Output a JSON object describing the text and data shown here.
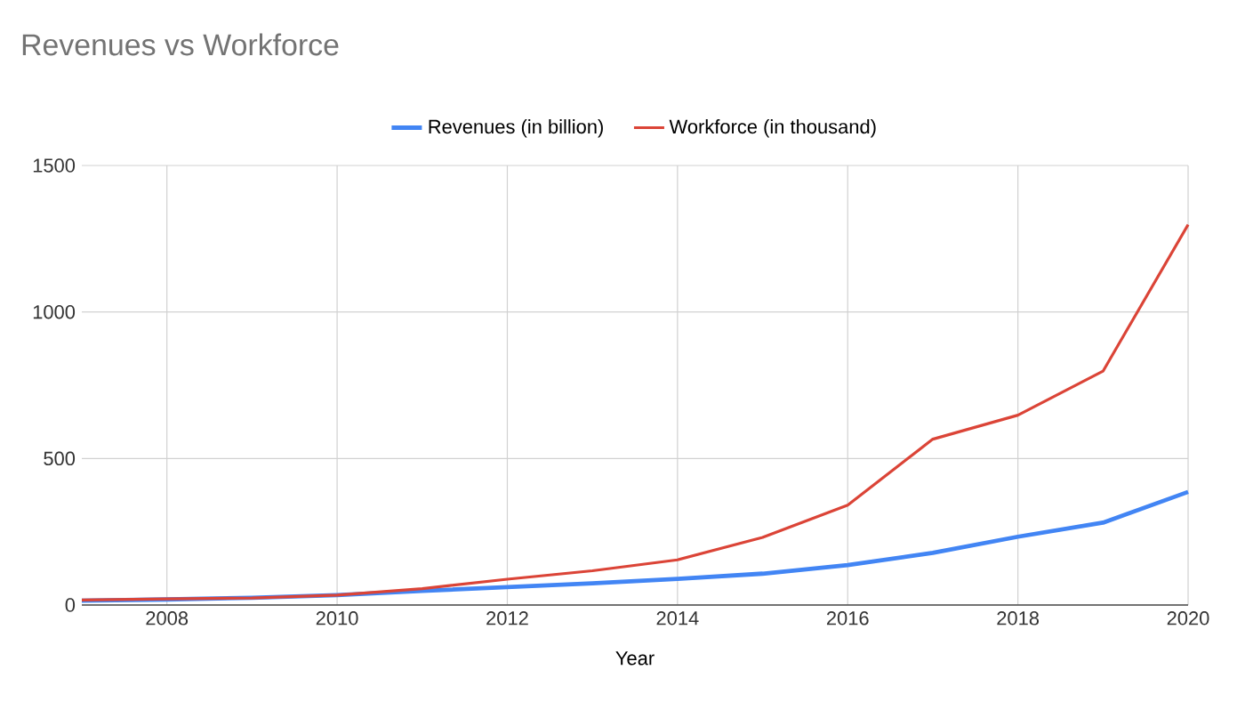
{
  "chart_data": {
    "type": "line",
    "title": "Revenues vs Workforce",
    "xlabel": "Year",
    "x": [
      2007,
      2008,
      2009,
      2010,
      2011,
      2012,
      2013,
      2014,
      2015,
      2016,
      2017,
      2018,
      2019,
      2020
    ],
    "series": [
      {
        "name": "Revenues (in billion)",
        "color": "#4285f4",
        "values": [
          15,
          19,
          25,
          34,
          48,
          61,
          74,
          89,
          107,
          136,
          178,
          233,
          281,
          386
        ]
      },
      {
        "name": "Workforce (in thousand)",
        "color": "#db4437",
        "values": [
          17,
          21,
          24,
          34,
          56,
          88,
          117,
          154,
          231,
          341,
          566,
          648,
          798,
          1298
        ]
      }
    ],
    "xlim": [
      2007,
      2020
    ],
    "xticks": [
      2008,
      2010,
      2012,
      2014,
      2016,
      2018,
      2020
    ],
    "ylim": [
      0,
      1500
    ],
    "yticks": [
      0,
      500,
      1000,
      1500
    ],
    "grid": true,
    "legend": "top",
    "marker": "none",
    "line_style": "solid"
  }
}
